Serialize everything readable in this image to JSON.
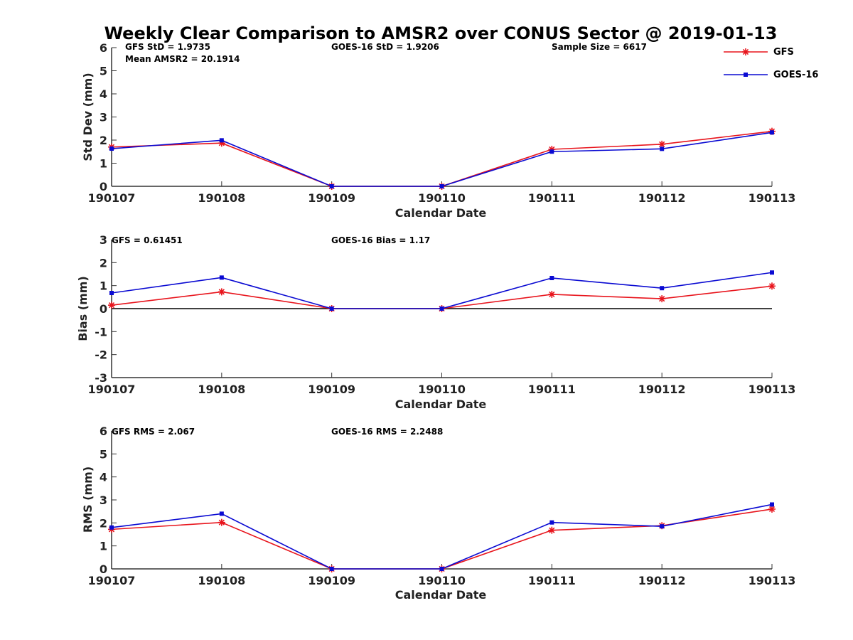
{
  "title": "Weekly Clear Comparison to AMSR2 over CONUS Sector @ 2019-01-13",
  "legend": {
    "placement": "top-right",
    "items": [
      {
        "label": "GFS",
        "color": "#e8141c",
        "marker": "asterisk"
      },
      {
        "label": "GOES-16",
        "color": "#0a0ad2",
        "marker": "square"
      }
    ]
  },
  "chart_data": [
    {
      "type": "line",
      "xlabel": "Calendar Date",
      "ylabel": "Std Dev (mm)",
      "x": [
        "190107",
        "190108",
        "190109",
        "190110",
        "190111",
        "190112",
        "190113"
      ],
      "ylim": [
        0,
        6
      ],
      "yticks": [
        "0",
        "1",
        "2",
        "3",
        "4",
        "5",
        "6"
      ],
      "zero_line": false,
      "annotations": [
        {
          "id": "gfs_std",
          "text": "GFS StD = 1.9735"
        },
        {
          "id": "mean_amsr2",
          "text": "Mean AMSR2 = 20.1914"
        },
        {
          "id": "goes_std",
          "text": "GOES-16 StD = 1.9206"
        },
        {
          "id": "sample",
          "text": "Sample Size = 6617"
        }
      ],
      "series": [
        {
          "name": "GFS",
          "color": "#e8141c",
          "marker": "asterisk",
          "values": [
            1.7,
            1.87,
            0.0,
            0.0,
            1.6,
            1.82,
            2.38
          ]
        },
        {
          "name": "GOES-16",
          "color": "#0a0ad2",
          "marker": "square",
          "values": [
            1.63,
            1.99,
            0.0,
            0.0,
            1.5,
            1.62,
            2.33
          ]
        }
      ]
    },
    {
      "type": "line",
      "xlabel": "Calendar Date",
      "ylabel": "Bias (mm)",
      "x": [
        "190107",
        "190108",
        "190109",
        "190110",
        "190111",
        "190112",
        "190113"
      ],
      "ylim": [
        -3,
        3
      ],
      "yticks": [
        "-3",
        "-2",
        "-1",
        "0",
        "1",
        "2",
        "3"
      ],
      "zero_line": true,
      "annotations": [
        {
          "id": "gfs_bias",
          "text": "GFS = 0.61451"
        },
        {
          "id": "goes_bias",
          "text": "GOES-16 Bias  = 1.17"
        }
      ],
      "series": [
        {
          "name": "GFS",
          "color": "#e8141c",
          "marker": "asterisk",
          "values": [
            0.15,
            0.73,
            0.0,
            0.0,
            0.62,
            0.43,
            0.98
          ]
        },
        {
          "name": "GOES-16",
          "color": "#0a0ad2",
          "marker": "square",
          "values": [
            0.68,
            1.35,
            0.0,
            0.0,
            1.33,
            0.89,
            1.57
          ]
        }
      ]
    },
    {
      "type": "line",
      "xlabel": "Calendar Date",
      "ylabel": "RMS (mm)",
      "x": [
        "190107",
        "190108",
        "190109",
        "190110",
        "190111",
        "190112",
        "190113"
      ],
      "ylim": [
        0,
        6
      ],
      "yticks": [
        "0",
        "1",
        "2",
        "3",
        "4",
        "5",
        "6"
      ],
      "zero_line": false,
      "annotations": [
        {
          "id": "gfs_rms",
          "text": "GFS RMS = 2.067"
        },
        {
          "id": "goes_rms",
          "text": "GOES-16 RMS = 2.2488"
        }
      ],
      "series": [
        {
          "name": "GFS",
          "color": "#e8141c",
          "marker": "asterisk",
          "values": [
            1.72,
            2.02,
            0.0,
            0.0,
            1.68,
            1.88,
            2.6
          ]
        },
        {
          "name": "GOES-16",
          "color": "#0a0ad2",
          "marker": "square",
          "values": [
            1.8,
            2.4,
            0.0,
            0.0,
            2.02,
            1.85,
            2.8
          ]
        }
      ]
    }
  ]
}
